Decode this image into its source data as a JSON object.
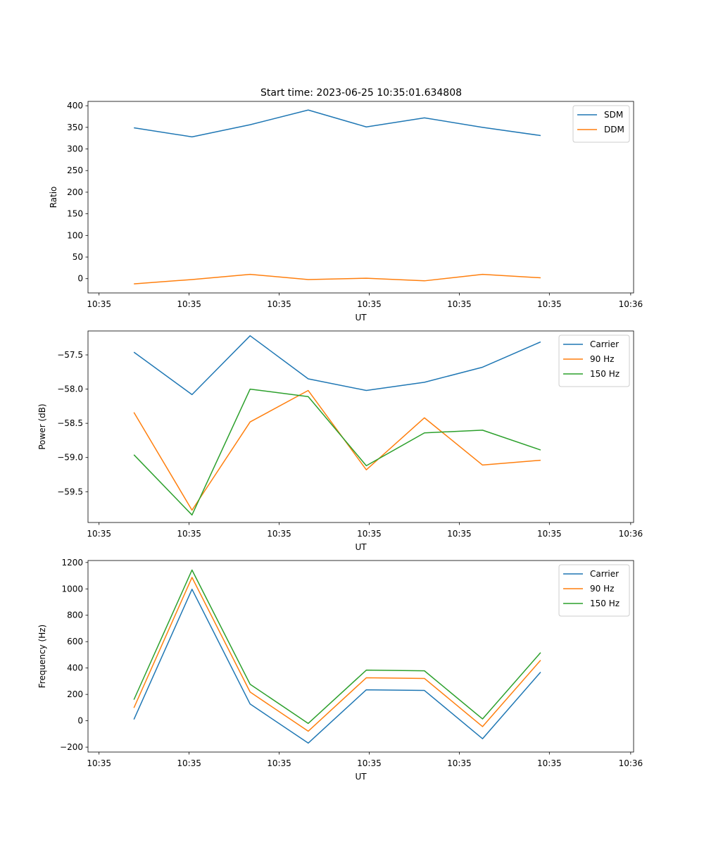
{
  "title": "Start time: 2023-06-25 10:35:01.634808",
  "colors": {
    "blue": "#1f77b4",
    "orange": "#ff7f0e",
    "green": "#2ca02c"
  },
  "chart_data": [
    {
      "type": "line",
      "title": "Start time: 2023-06-25 10:35:01.634808",
      "xlabel": "UT",
      "ylabel": "Ratio",
      "x": [
        1,
        2,
        3,
        4,
        5,
        6,
        7,
        8
      ],
      "xlim": [
        0.21,
        9.6
      ],
      "x_ticks": [
        0.4,
        1.95,
        3.5,
        5.05,
        6.6,
        8.15,
        9.55
      ],
      "x_tick_labels": [
        "10:35",
        "10:35",
        "10:35",
        "10:35",
        "10:35",
        "10:35",
        "10:36"
      ],
      "ylim": [
        -33,
        410
      ],
      "y_ticks": [
        0,
        50,
        100,
        150,
        200,
        250,
        300,
        350,
        400
      ],
      "y_tick_labels": [
        "0",
        "50",
        "100",
        "150",
        "200",
        "250",
        "300",
        "350",
        "400"
      ],
      "legend": "top-right",
      "series": [
        {
          "name": "SDM",
          "color": "#1f77b4",
          "values": [
            349,
            328,
            356,
            390,
            351,
            372,
            350,
            331
          ]
        },
        {
          "name": "DDM",
          "color": "#ff7f0e",
          "values": [
            -12,
            -2,
            10,
            -2,
            1,
            -5,
            10,
            2
          ]
        }
      ]
    },
    {
      "type": "line",
      "xlabel": "UT",
      "ylabel": "Power (dB)",
      "x": [
        1,
        2,
        3,
        4,
        5,
        6,
        7,
        8
      ],
      "xlim": [
        0.21,
        9.6
      ],
      "x_ticks": [
        0.4,
        1.95,
        3.5,
        5.05,
        6.6,
        8.15,
        9.55
      ],
      "x_tick_labels": [
        "10:35",
        "10:35",
        "10:35",
        "10:35",
        "10:35",
        "10:35",
        "10:36"
      ],
      "ylim": [
        -59.95,
        -57.15
      ],
      "y_ticks": [
        -59.5,
        -59.0,
        -58.5,
        -58.0,
        -57.5
      ],
      "y_tick_labels": [
        "−59.5",
        "−59.0",
        "−58.5",
        "−58.0",
        "−57.5"
      ],
      "legend": "top-right",
      "series": [
        {
          "name": "Carrier",
          "color": "#1f77b4",
          "values": [
            -57.46,
            -58.08,
            -57.22,
            -57.85,
            -58.02,
            -57.9,
            -57.68,
            -57.31
          ]
        },
        {
          "name": "90 Hz",
          "color": "#ff7f0e",
          "values": [
            -58.34,
            -59.77,
            -58.48,
            -58.02,
            -59.18,
            -58.42,
            -59.11,
            -59.04
          ]
        },
        {
          "name": "150 Hz",
          "color": "#2ca02c",
          "values": [
            -58.96,
            -59.84,
            -58.0,
            -58.11,
            -59.12,
            -58.64,
            -58.6,
            -58.89
          ]
        }
      ]
    },
    {
      "type": "line",
      "xlabel": "UT",
      "ylabel": "Frequency (Hz)",
      "x": [
        1,
        2,
        3,
        4,
        5,
        6,
        7,
        8
      ],
      "xlim": [
        0.21,
        9.6
      ],
      "x_ticks": [
        0.4,
        1.95,
        3.5,
        5.05,
        6.6,
        8.15,
        9.55
      ],
      "x_tick_labels": [
        "10:35",
        "10:35",
        "10:35",
        "10:35",
        "10:35",
        "10:35",
        "10:36"
      ],
      "ylim": [
        -237,
        1215
      ],
      "y_ticks": [
        -200,
        0,
        200,
        400,
        600,
        800,
        1000,
        1200
      ],
      "y_tick_labels": [
        "−200",
        "0",
        "200",
        "400",
        "600",
        "800",
        "1000",
        "1200"
      ],
      "legend": "top-right",
      "series": [
        {
          "name": "Carrier",
          "color": "#1f77b4",
          "values": [
            10,
            997,
            127,
            -169,
            235,
            230,
            -136,
            369
          ]
        },
        {
          "name": "90 Hz",
          "color": "#ff7f0e",
          "values": [
            98,
            1087,
            218,
            -79,
            326,
            321,
            -44,
            459
          ]
        },
        {
          "name": "150 Hz",
          "color": "#2ca02c",
          "values": [
            160,
            1143,
            277,
            -20,
            384,
            379,
            14,
            517
          ]
        }
      ]
    }
  ]
}
